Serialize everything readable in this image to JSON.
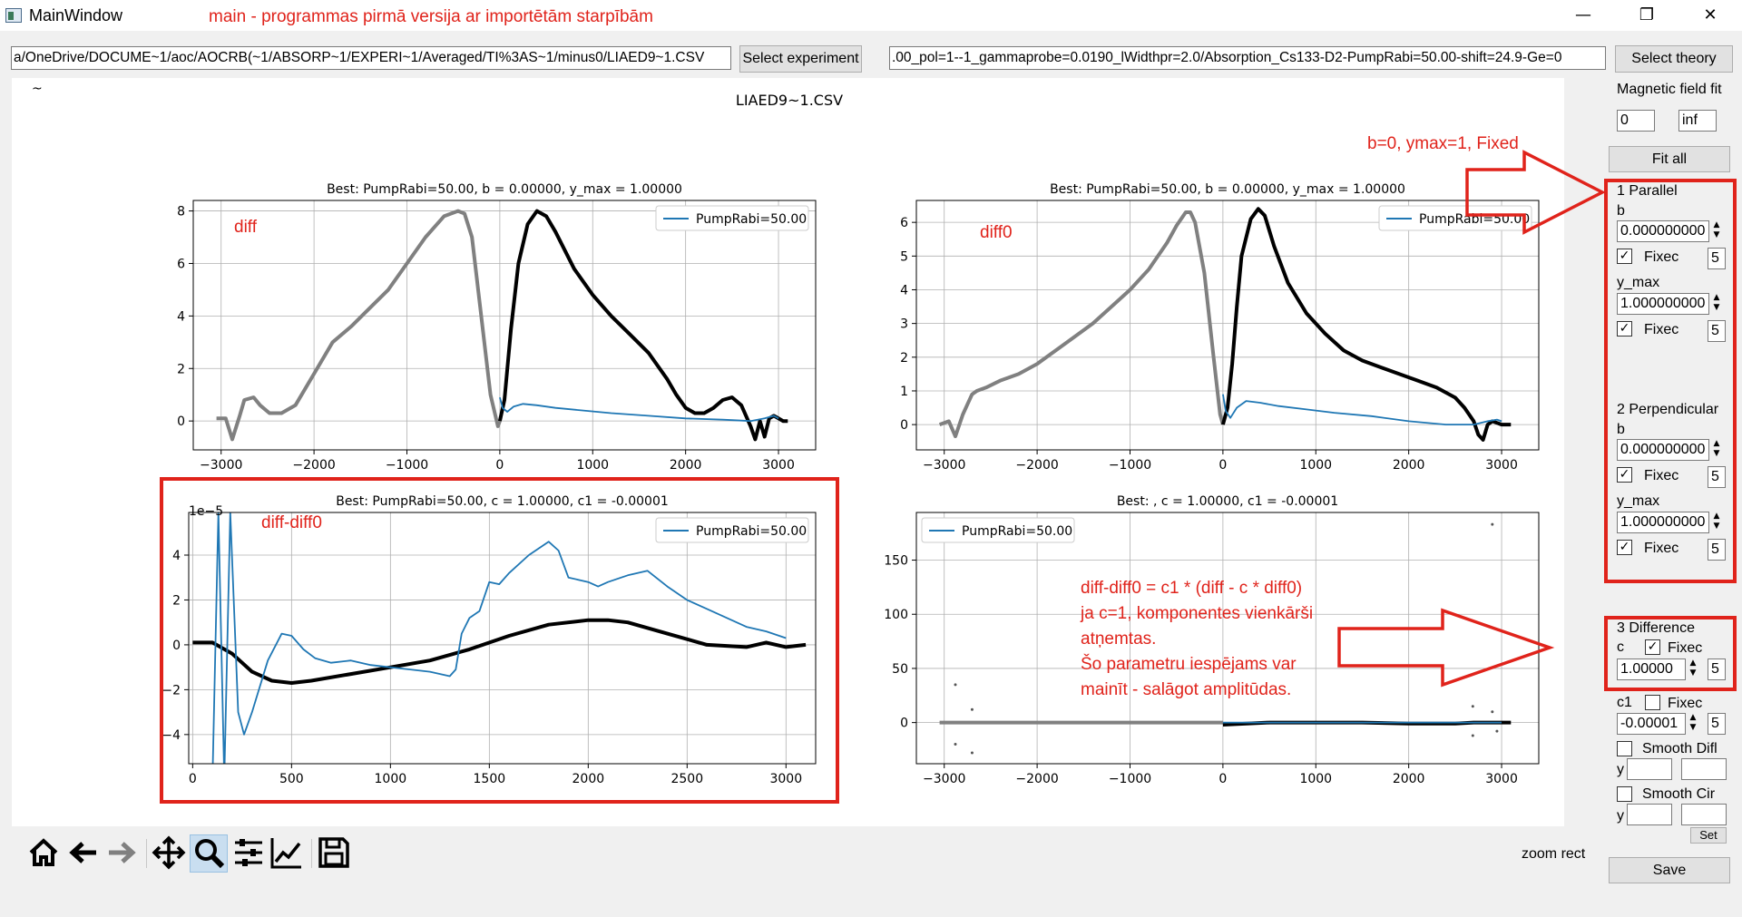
{
  "window": {
    "title": "MainWindow",
    "annotation": "main - programmas pirmā versija ar importētām starpībām",
    "minimize": "—",
    "restore": "❐",
    "close": "✕"
  },
  "top": {
    "experiment_path": "a/OneDrive/DOCUME~1/aoc/AOCRB(~1/ABSORP~1/EXPERI~1/Averaged/TI%3AS~1/minus0/LIAED9~1.CSV",
    "select_experiment": "Select experiment",
    "theory_path": ".00_pol=1--1_gammaprobe=0.0190_lWidthpr=2.0/Absorption_Cs133-D2-PumpRabi=50.00-shift=24.9-Ge=0",
    "select_theory": "Select theory"
  },
  "figure": {
    "suptitle": "LIAED9~1.CSV",
    "cursor_mark": "~",
    "legend_label": "PumpRabi=50.00",
    "plots": [
      {
        "title": "Best: PumpRabi=50.00, b = 0.00000, y_max = 1.00000",
        "label": "diff"
      },
      {
        "title": "Best: PumpRabi=50.00, b = 0.00000, y_max = 1.00000",
        "label": "diff0"
      },
      {
        "title": "Best: PumpRabi=50.00, c = 1.00000, c1 = -0.00001",
        "label": "diff-diff0",
        "offset": "1e−5"
      },
      {
        "title": "Best: , c = 1.00000, c1 = -0.00001",
        "label": ""
      }
    ],
    "note_lines": [
      "diff-diff0 = c1 * (diff - c * diff0)",
      "ja c=1, komponentes vienkārši",
      "atņemtas.",
      "Šo parametru iespējams var",
      "mainīt - salāgot amplitūdas."
    ],
    "arrow_note": "b=0, ymax=1, Fixed"
  },
  "chart_data": [
    {
      "type": "line",
      "title": "Best: PumpRabi=50.00, b = 0.00000, y_max = 1.00000",
      "xlim": [
        -3300,
        3400
      ],
      "ylim": [
        -1.1,
        8.4
      ],
      "xticks": [
        -3000,
        -2000,
        -1000,
        0,
        1000,
        2000,
        3000
      ],
      "yticks": [
        0,
        2,
        4,
        6,
        8
      ],
      "grid": true,
      "legend": "top-right",
      "series": [
        {
          "name": "",
          "color": "#808080",
          "x": [
            -3050,
            -2950,
            -2880,
            -2800,
            -2750,
            -2650,
            -2580,
            -2480,
            -2350,
            -2200,
            -2000,
            -1800,
            -1600,
            -1400,
            -1200,
            -1000,
            -800,
            -600,
            -450,
            -380,
            -300,
            -200,
            -100,
            -20,
            0
          ],
          "y": [
            0.1,
            0.1,
            -0.7,
            0.2,
            0.8,
            0.9,
            0.6,
            0.3,
            0.3,
            0.6,
            1.8,
            3.0,
            3.6,
            4.3,
            5.0,
            6.0,
            7.0,
            7.8,
            8.0,
            7.9,
            7.0,
            4.0,
            1.0,
            -0.2,
            0.0
          ]
        },
        {
          "name": "",
          "color": "#000000",
          "x": [
            0,
            50,
            120,
            200,
            300,
            400,
            500,
            600,
            800,
            1000,
            1200,
            1400,
            1600,
            1800,
            1900,
            2000,
            2100,
            2200,
            2300,
            2400,
            2500,
            2600,
            2700,
            2750,
            2800,
            2850,
            2900,
            2950,
            3000,
            3050,
            3100
          ],
          "y": [
            0.0,
            0.8,
            3.5,
            6.0,
            7.5,
            8.0,
            7.8,
            7.2,
            5.8,
            4.8,
            4.0,
            3.3,
            2.6,
            1.6,
            1.0,
            0.5,
            0.3,
            0.3,
            0.5,
            0.8,
            0.9,
            0.6,
            -0.2,
            -0.7,
            0.0,
            -0.6,
            0.1,
            0.2,
            0.1,
            0.0,
            0.0
          ]
        },
        {
          "name": "PumpRabi=50.00",
          "color": "#1f77b4",
          "x": [
            0,
            30,
            80,
            150,
            250,
            400,
            600,
            900,
            1200,
            1600,
            2000,
            2400,
            2700,
            2850,
            2950,
            3000
          ],
          "y": [
            0.9,
            0.5,
            0.35,
            0.55,
            0.65,
            0.6,
            0.5,
            0.4,
            0.3,
            0.2,
            0.1,
            0.05,
            0.0,
            0.1,
            0.2,
            0.1
          ]
        }
      ]
    },
    {
      "type": "line",
      "title": "Best: PumpRabi=50.00, b = 0.00000, y_max = 1.00000",
      "xlim": [
        -3300,
        3400
      ],
      "ylim": [
        -0.75,
        6.65
      ],
      "xticks": [
        -3000,
        -2000,
        -1000,
        0,
        1000,
        2000,
        3000
      ],
      "yticks": [
        0,
        1,
        2,
        3,
        4,
        5,
        6
      ],
      "grid": true,
      "legend": "top-right",
      "series": [
        {
          "name": "",
          "color": "#808080",
          "x": [
            -3050,
            -2950,
            -2880,
            -2800,
            -2750,
            -2700,
            -2650,
            -2550,
            -2400,
            -2200,
            -2000,
            -1800,
            -1600,
            -1400,
            -1200,
            -1000,
            -800,
            -600,
            -500,
            -400,
            -350,
            -300,
            -200,
            -100,
            -30,
            0
          ],
          "y": [
            0.0,
            0.1,
            -0.35,
            0.3,
            0.6,
            0.9,
            1.0,
            1.1,
            1.3,
            1.5,
            1.8,
            2.2,
            2.6,
            3.0,
            3.5,
            4.0,
            4.6,
            5.4,
            5.9,
            6.3,
            6.3,
            6.0,
            4.5,
            2.0,
            0.3,
            0.0
          ]
        },
        {
          "name": "",
          "color": "#000000",
          "x": [
            0,
            50,
            100,
            150,
            200,
            300,
            380,
            450,
            550,
            700,
            900,
            1100,
            1300,
            1500,
            1700,
            1900,
            2100,
            2300,
            2500,
            2600,
            2700,
            2750,
            2800,
            2850,
            2900,
            3000,
            3100
          ],
          "y": [
            0.0,
            0.5,
            1.8,
            3.5,
            5.0,
            6.1,
            6.4,
            6.2,
            5.3,
            4.2,
            3.3,
            2.7,
            2.2,
            1.9,
            1.7,
            1.5,
            1.3,
            1.1,
            0.8,
            0.5,
            0.1,
            -0.3,
            -0.45,
            0.0,
            0.1,
            0.0,
            0.0
          ]
        },
        {
          "name": "PumpRabi=50.00",
          "color": "#1f77b4",
          "x": [
            0,
            30,
            80,
            150,
            250,
            400,
            600,
            900,
            1200,
            1600,
            2000,
            2400,
            2700,
            2850,
            2950,
            3000
          ],
          "y": [
            0.9,
            0.4,
            0.2,
            0.5,
            0.7,
            0.65,
            0.55,
            0.45,
            0.35,
            0.25,
            0.1,
            0.0,
            0.0,
            0.1,
            0.15,
            0.1
          ]
        }
      ]
    },
    {
      "type": "line",
      "title": "Best: PumpRabi=50.00, c = 1.00000, c1 = -0.00001",
      "xlim": [
        -20,
        3150
      ],
      "ylim": [
        -5.3,
        5.9
      ],
      "xticks": [
        0,
        500,
        1000,
        1500,
        2000,
        2500,
        3000
      ],
      "yticks": [
        -4,
        -2,
        0,
        2,
        4
      ],
      "offset_text": "1e−5",
      "grid": true,
      "legend": "top-right",
      "series": [
        {
          "name": "",
          "color": "#000000",
          "x": [
            0,
            100,
            200,
            300,
            400,
            500,
            600,
            800,
            1000,
            1200,
            1400,
            1600,
            1800,
            2000,
            2100,
            2200,
            2400,
            2600,
            2800,
            2900,
            3000,
            3100
          ],
          "y": [
            0.1,
            0.1,
            -0.4,
            -1.2,
            -1.6,
            -1.7,
            -1.6,
            -1.3,
            -1.0,
            -0.7,
            -0.2,
            0.4,
            0.9,
            1.1,
            1.1,
            1.0,
            0.5,
            0.0,
            -0.1,
            0.1,
            -0.1,
            0.0
          ]
        },
        {
          "name": "PumpRabi=50.00",
          "color": "#1f77b4",
          "x": [
            100,
            130,
            160,
            190,
            230,
            260,
            300,
            380,
            450,
            500,
            560,
            620,
            700,
            800,
            900,
            1000,
            1100,
            1200,
            1300,
            1330,
            1360,
            1400,
            1450,
            1500,
            1550,
            1600,
            1700,
            1800,
            1850,
            1900,
            1950,
            2000,
            2050,
            2100,
            2200,
            2300,
            2400,
            2500,
            2600,
            2700,
            2800,
            2900,
            3000
          ],
          "y": [
            -6,
            5.9,
            -6,
            5.9,
            -3.0,
            -4.0,
            -3.0,
            -0.7,
            0.5,
            0.4,
            -0.2,
            -0.6,
            -0.8,
            -0.7,
            -0.9,
            -1.0,
            -1.1,
            -1.2,
            -1.4,
            -1.1,
            0.5,
            1.2,
            1.5,
            2.8,
            2.7,
            3.2,
            4.0,
            4.6,
            4.2,
            3.0,
            2.9,
            2.8,
            2.6,
            2.8,
            3.1,
            3.3,
            2.6,
            2.0,
            1.6,
            1.2,
            0.8,
            0.6,
            0.3
          ]
        }
      ]
    },
    {
      "type": "scatter",
      "title": "Best: , c = 1.00000, c1 = -0.00001",
      "xlim": [
        -3300,
        3400
      ],
      "ylim": [
        -38,
        194
      ],
      "xticks": [
        -3000,
        -2000,
        -1000,
        0,
        1000,
        2000,
        3000
      ],
      "yticks": [
        0,
        50,
        100,
        150
      ],
      "grid": true,
      "legend": "top-left",
      "series": [
        {
          "name": "",
          "color": "#808080",
          "x": [
            -3050,
            -2900,
            -2700,
            -2000,
            -1000,
            -500,
            0
          ],
          "y": [
            0,
            0,
            0,
            0,
            0,
            0,
            0
          ]
        },
        {
          "name": "",
          "color": "#000000",
          "x": [
            0,
            500,
            1000,
            1500,
            2000,
            2500,
            2700,
            2800,
            2900,
            3000,
            3100
          ],
          "y": [
            -2,
            0,
            0,
            0,
            -1,
            -1,
            0,
            0,
            0,
            0,
            0
          ]
        },
        {
          "name": "PumpRabi=50.00",
          "color": "#1f77b4",
          "x": [
            0,
            3000
          ],
          "y": [
            0,
            0
          ]
        },
        {
          "name": "",
          "color": "#555555",
          "x": [
            -2880,
            -2880,
            -2700,
            -2700,
            2690,
            2690,
            2900,
            2900,
            2950
          ],
          "y": [
            35,
            -20,
            12,
            -28,
            15,
            -12,
            183,
            10,
            -8
          ]
        }
      ]
    }
  ],
  "side": {
    "magnetic_field_fit": "Magnetic field fit",
    "mf_from": "0",
    "mf_to": "inf",
    "fit_all": "Fit all",
    "parallel": {
      "title": "1 Parallel",
      "b_label": "b",
      "b_value": "0.000000000",
      "b_fixed": "Fixec",
      "b_digits": "5",
      "ymax_label": "y_max",
      "ymax_value": "1.000000000",
      "ymax_fixed": "Fixec",
      "ymax_digits": "5"
    },
    "perpendicular": {
      "title": "2 Perpendicular",
      "b_label": "b",
      "b_value": "0.000000000",
      "b_fixed": "Fixec",
      "b_digits": "5",
      "ymax_label": "y_max",
      "ymax_value": "1.000000000",
      "ymax_fixed": "Fixec",
      "ymax_digits": "5"
    },
    "difference": {
      "title": "3 Difference",
      "c_label": "c",
      "c_fixed": "Fixec",
      "c_value": "1.00000",
      "c_digits": "5",
      "c1_label": "c1",
      "c1_fixed": "Fixec",
      "c1_value": "-0.00001",
      "c1_digits": "5"
    },
    "smooth_diff": "Smooth Difl",
    "smooth_circ": "Smooth Cir",
    "y_label": "y",
    "set": "Set",
    "save": "Save"
  },
  "toolbar": {
    "items": [
      "home-icon",
      "back-icon",
      "forward-icon",
      "pan-icon",
      "zoom-icon",
      "subplots-icon",
      "axes-edit-icon",
      "save-figure-icon"
    ],
    "status": "zoom rect"
  }
}
